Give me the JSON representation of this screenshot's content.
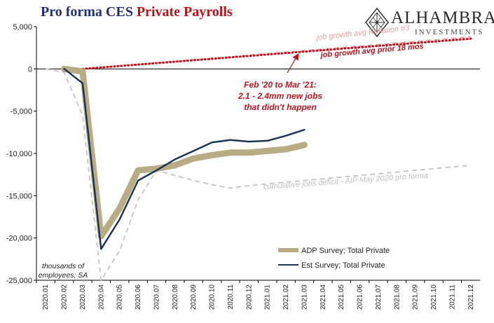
{
  "header": {
    "title_part1": "Pro forma CES",
    "title_part2": "Private Payrolls",
    "accent_blue": "#1f2f78",
    "accent_red": "#c0101a"
  },
  "logo": {
    "name": "ALHAMBRA",
    "sub": "INVESTMENTS",
    "icon": "diamond-lattice-icon"
  },
  "chart_data": {
    "type": "line",
    "x": [
      "2020.01",
      "2020.02",
      "2020.03",
      "2020.04",
      "2020.05",
      "2020.06",
      "2020.07",
      "2020.08",
      "2020.09",
      "2020.10",
      "2020.11",
      "2020.12",
      "2021.01",
      "2021.02",
      "2021.03",
      "2021.04",
      "2021.05",
      "2021.06",
      "2021.07",
      "2021.08",
      "2021.09",
      "2021.10",
      "2021.11",
      "2021.12"
    ],
    "ylim": [
      -25000,
      5000
    ],
    "yticks": [
      5000,
      0,
      -5000,
      -10000,
      -15000,
      -20000,
      -25000
    ],
    "ytick_labels": [
      "5,000",
      "0",
      "-5,000",
      "-10,000",
      "-15,000",
      "-20,000",
      "-25,000"
    ],
    "units_note": "thousands of employees; SA",
    "series": [
      {
        "name": "ADP Survey; Total Private",
        "color": "#b8ac84",
        "style": "thick",
        "values": [
          null,
          0,
          -300,
          -19800,
          -16500,
          -12000,
          -11800,
          -11400,
          -10600,
          -10200,
          -9900,
          -9900,
          -9700,
          -9500,
          -9000,
          null,
          null,
          null,
          null,
          null,
          null,
          null,
          null,
          null
        ]
      },
      {
        "name": "Est Survey; Total Private",
        "color": "#1c3557",
        "style": "solid",
        "values": [
          null,
          0,
          -1700,
          -21300,
          -17800,
          -13200,
          -12000,
          -10700,
          -9700,
          -8700,
          -8400,
          -8600,
          -8500,
          -7900,
          -7200,
          null,
          null,
          null,
          null,
          null,
          null,
          null,
          null,
          null
        ]
      },
      {
        "name": "job growth avg Reflation #3",
        "color": "#e8a0a0",
        "style": "dashed",
        "values": [
          null,
          null,
          0,
          180,
          360,
          540,
          720,
          900,
          1080,
          1260,
          1440,
          1620,
          1800,
          1980,
          2160,
          2340,
          2520,
          2700,
          2880,
          3060,
          3240,
          3420,
          3600,
          3780
        ]
      },
      {
        "name": "job growth avg prior 18 mos",
        "color": "#c0101a",
        "style": "dotted",
        "values": [
          null,
          null,
          0,
          170,
          340,
          510,
          680,
          850,
          1020,
          1190,
          1360,
          1530,
          1700,
          1870,
          2040,
          2210,
          2380,
          2550,
          2720,
          2890,
          3060,
          3230,
          3400,
          3570
        ]
      },
      {
        "name": "cumulative jobs deficit - AIP May 2020 pro forma",
        "color": "#c8c8c8",
        "style": "dashed",
        "values": [
          0,
          -400,
          -5500,
          -25000,
          -21500,
          -15500,
          -12000,
          -12600,
          -13200,
          -13700,
          -14100,
          -13800,
          -13600,
          -13400,
          -13200,
          -13000,
          -12800,
          -12600,
          -12400,
          -12200,
          -12000,
          -11800,
          -11600,
          -11400
        ]
      }
    ],
    "annotations": {
      "reflation": "job growth avg Reflation #3",
      "prior18": "job growth avg prior 18 mos",
      "feb_line1": "Feb '20 to Mar  '21:",
      "feb_line2": "2.1 - 2.4mm new jobs",
      "feb_line3": "that didn't happen",
      "deficit": "cumulative jobs deficit - AIP May 2020 pro forma",
      "units_line1": "thousands of",
      "units_line2": "employees; SA"
    },
    "legend": {
      "placement": "bottom-right",
      "adp": "ADP Survey; Total Private",
      "est": "Est Survey; Total Private"
    }
  }
}
